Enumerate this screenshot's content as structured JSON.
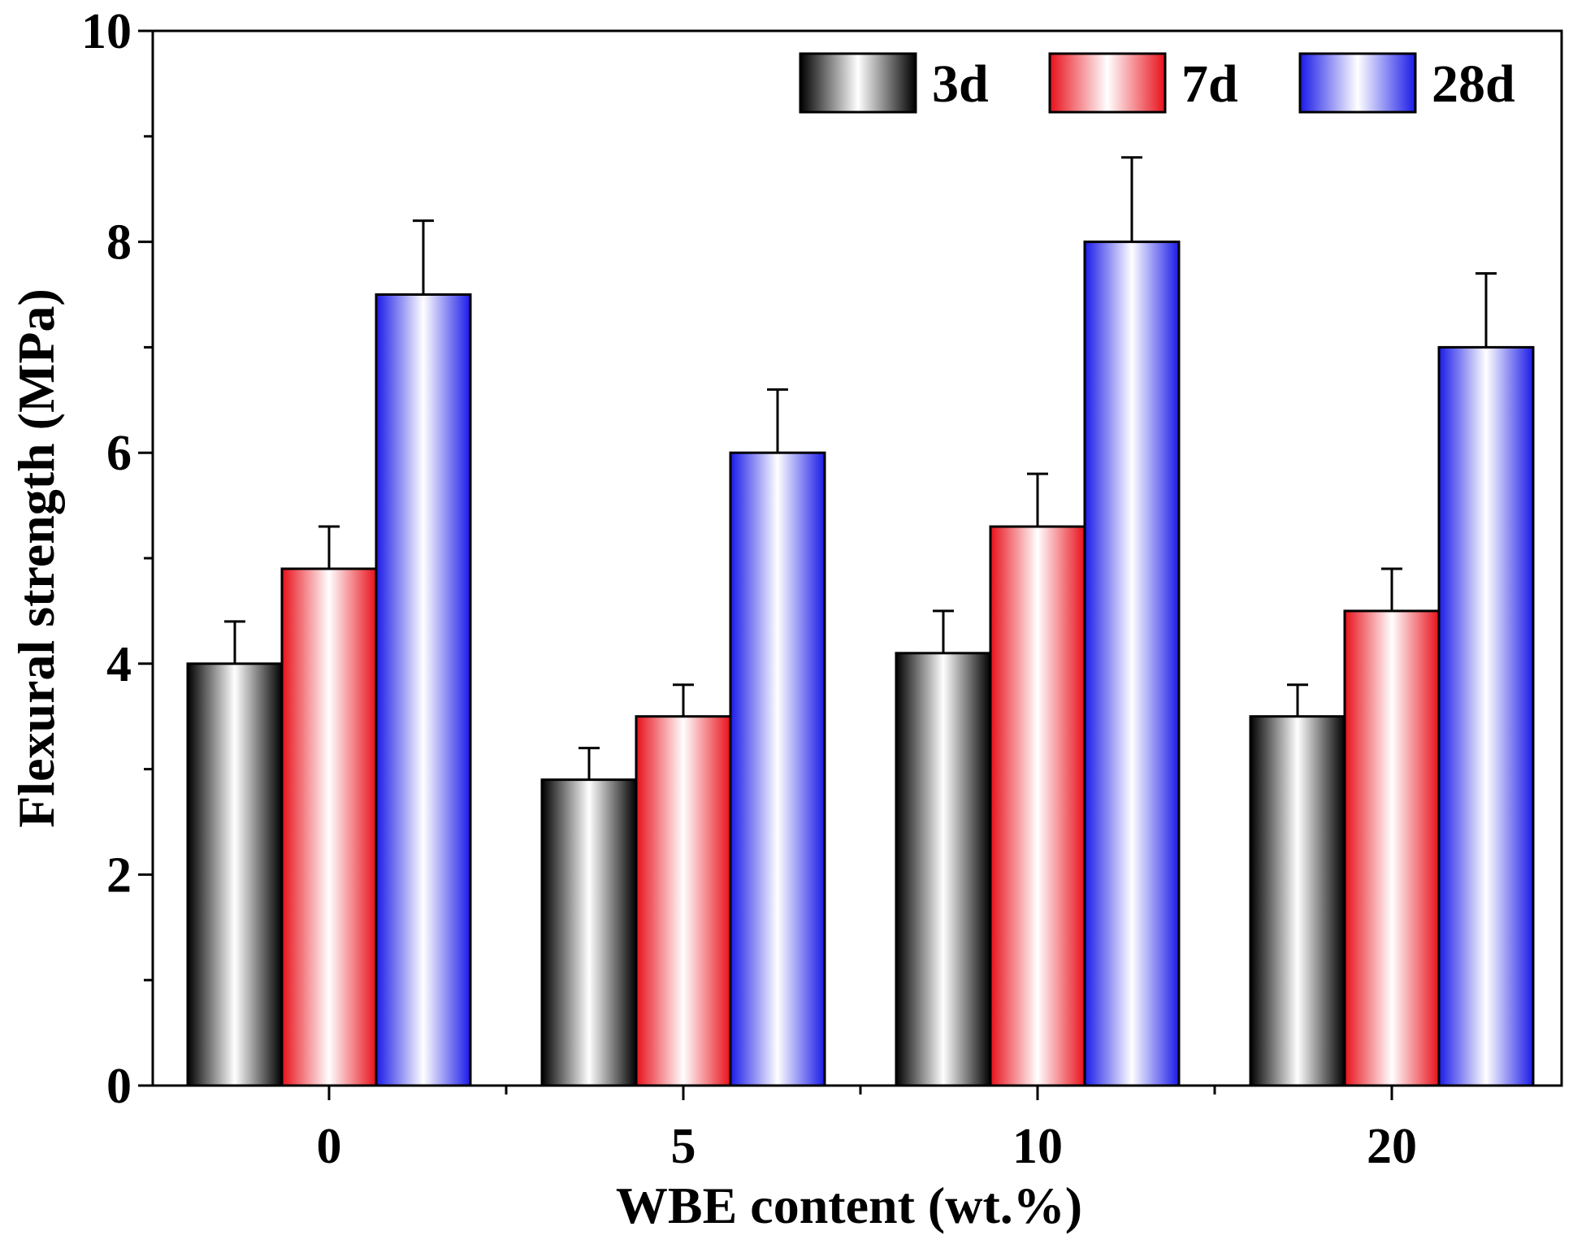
{
  "chart_data": {
    "type": "bar",
    "title": "",
    "xlabel": "WBE content (wt.%)",
    "ylabel": "Flexural strength (MPa)",
    "categories": [
      "0",
      "5",
      "10",
      "20"
    ],
    "ylim": [
      0,
      10
    ],
    "yticks": [
      "0",
      "2",
      "4",
      "6",
      "8",
      "10"
    ],
    "grid": false,
    "legend_position": "top-right",
    "series": [
      {
        "name": "3d",
        "color": "#000000",
        "values": [
          4.0,
          2.9,
          4.1,
          3.5
        ],
        "errors": [
          0.4,
          0.3,
          0.4,
          0.3
        ]
      },
      {
        "name": "7d",
        "color": "#e8101a",
        "values": [
          4.9,
          3.5,
          5.3,
          4.5
        ],
        "errors": [
          0.4,
          0.3,
          0.5,
          0.4
        ]
      },
      {
        "name": "28d",
        "color": "#1a1ae8",
        "values": [
          7.5,
          6.0,
          8.0,
          7.0
        ],
        "errors": [
          0.7,
          0.6,
          0.8,
          0.7
        ]
      }
    ]
  }
}
